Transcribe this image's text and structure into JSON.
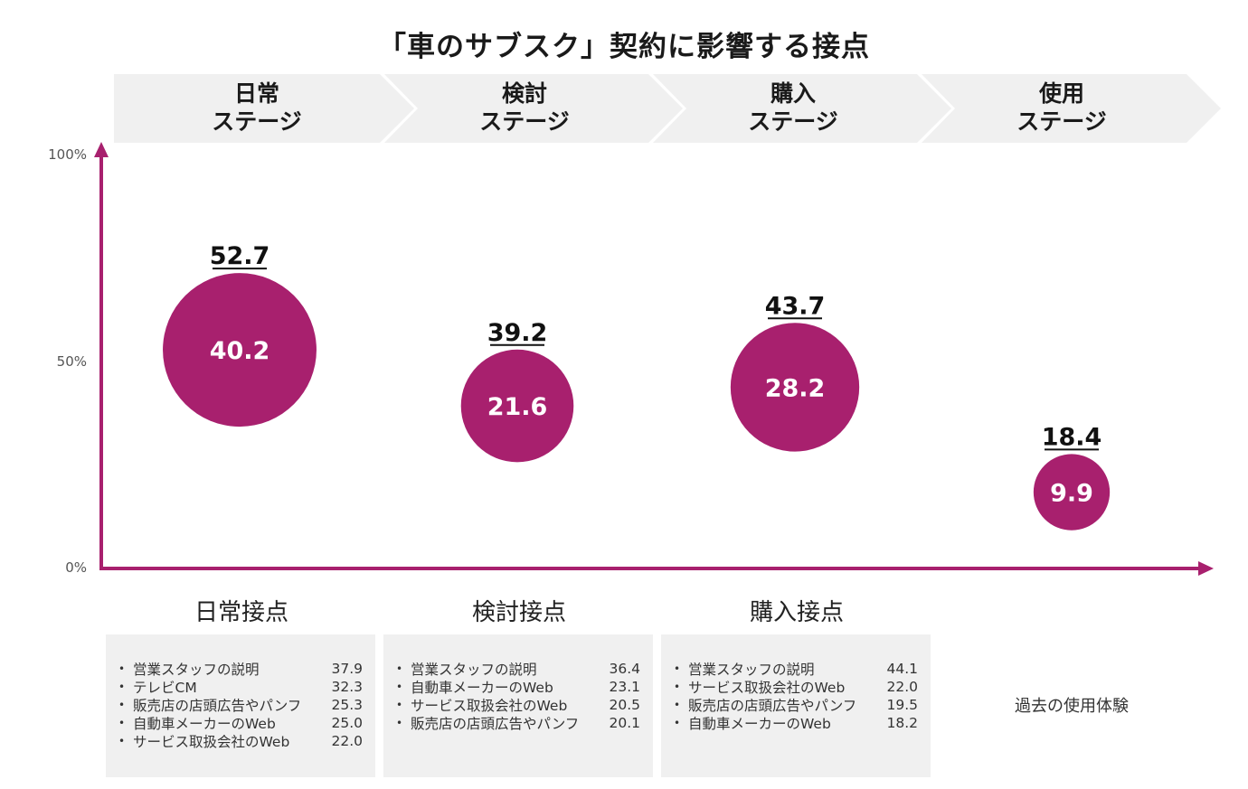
{
  "title": "「車のサブスク」契約に影響する接点",
  "colors": {
    "accent": "#a8206e",
    "chevron": "#f0f0f0",
    "box": "#f0f0f0"
  },
  "stages": [
    {
      "line1": "日常",
      "line2": "ステージ"
    },
    {
      "line1": "検討",
      "line2": "ステージ"
    },
    {
      "line1": "購入",
      "line2": "ステージ"
    },
    {
      "line1": "使用",
      "line2": "ステージ"
    }
  ],
  "y_ticks": [
    "100%",
    "50%",
    "0%"
  ],
  "chart_data": {
    "type": "bubble",
    "title": "「車のサブスク」契約に影響する接点",
    "ylim": [
      0,
      100
    ],
    "categories": [
      "日常",
      "検討",
      "購入",
      "使用"
    ],
    "series": [
      {
        "values": [
          52.7,
          39.2,
          43.7,
          18.4
        ],
        "size": [
          40.2,
          21.6,
          28.2,
          9.9
        ]
      }
    ],
    "labels_above": [
      "52.7",
      "39.2",
      "43.7",
      "18.4"
    ],
    "labels_inside": [
      "40.2",
      "21.6",
      "28.2",
      "9.9"
    ]
  },
  "touchpoints": [
    {
      "heading": "日常接点",
      "items": [
        {
          "label": "営業スタッフの説明",
          "value": "37.9"
        },
        {
          "label": "テレビCM",
          "value": "32.3"
        },
        {
          "label": "販売店の店頭広告やパンフ",
          "value": "25.3"
        },
        {
          "label": "自動車メーカーのWeb",
          "value": "25.0"
        },
        {
          "label": "サービス取扱会社のWeb",
          "value": "22.0"
        }
      ]
    },
    {
      "heading": "検討接点",
      "items": [
        {
          "label": "営業スタッフの説明",
          "value": "36.4"
        },
        {
          "label": "自動車メーカーのWeb",
          "value": "23.1"
        },
        {
          "label": "サービス取扱会社のWeb",
          "value": "20.5"
        },
        {
          "label": "販売店の店頭広告やパンフ",
          "value": "20.1"
        }
      ]
    },
    {
      "heading": "購入接点",
      "items": [
        {
          "label": "営業スタッフの説明",
          "value": "44.1"
        },
        {
          "label": "サービス取扱会社のWeb",
          "value": "22.0"
        },
        {
          "label": "販売店の店頭広告やパンフ",
          "value": "19.5"
        },
        {
          "label": "自動車メーカーのWeb",
          "value": "18.2"
        }
      ]
    }
  ],
  "past_use": "過去の使用体験",
  "bullet": "•"
}
